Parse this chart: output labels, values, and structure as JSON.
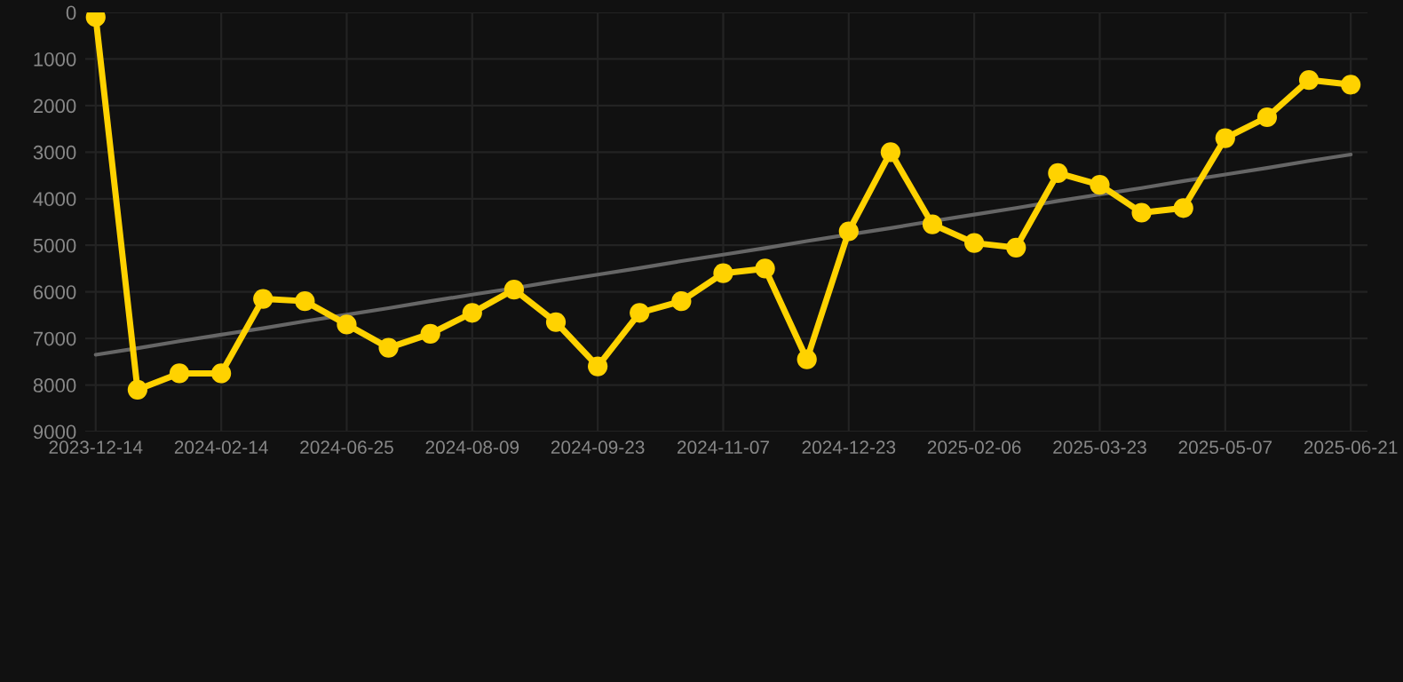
{
  "chart_data": {
    "type": "line",
    "categories": [
      "2023-12-14",
      null,
      null,
      "2024-02-14",
      null,
      null,
      "2024-06-25",
      null,
      null,
      "2024-08-09",
      null,
      null,
      "2024-09-23",
      null,
      null,
      "2024-11-07",
      null,
      null,
      "2024-12-23",
      null,
      null,
      "2025-02-06",
      null,
      null,
      "2025-03-23",
      null,
      null,
      "2025-05-07",
      null,
      null,
      "2025-06-21"
    ],
    "series": [
      {
        "color": "#ffd200",
        "marker": "circle",
        "values": [
          100,
          8100,
          7750,
          7750,
          6150,
          6200,
          6700,
          7200,
          6900,
          6450,
          5950,
          6650,
          7600,
          6450,
          6200,
          5600,
          5500,
          7450,
          4700,
          3000,
          4550,
          4950,
          5050,
          3450,
          3700,
          4300,
          4200,
          2700,
          2250,
          1450,
          1550
        ]
      },
      {
        "color": "#666666",
        "marker": "none",
        "values": [
          7350,
          7210,
          7060,
          6920,
          6780,
          6630,
          6490,
          6350,
          6200,
          6060,
          5920,
          5770,
          5630,
          5490,
          5340,
          5200,
          5060,
          4910,
          4770,
          4630,
          4480,
          4340,
          4200,
          4050,
          3910,
          3770,
          3620,
          3480,
          3340,
          3190,
          3050
        ]
      }
    ],
    "ylim": [
      9000,
      0
    ],
    "yticks": [
      0,
      1000,
      2000,
      3000,
      4000,
      5000,
      6000,
      7000,
      8000,
      9000
    ],
    "grid": true,
    "line_style": "solid"
  }
}
